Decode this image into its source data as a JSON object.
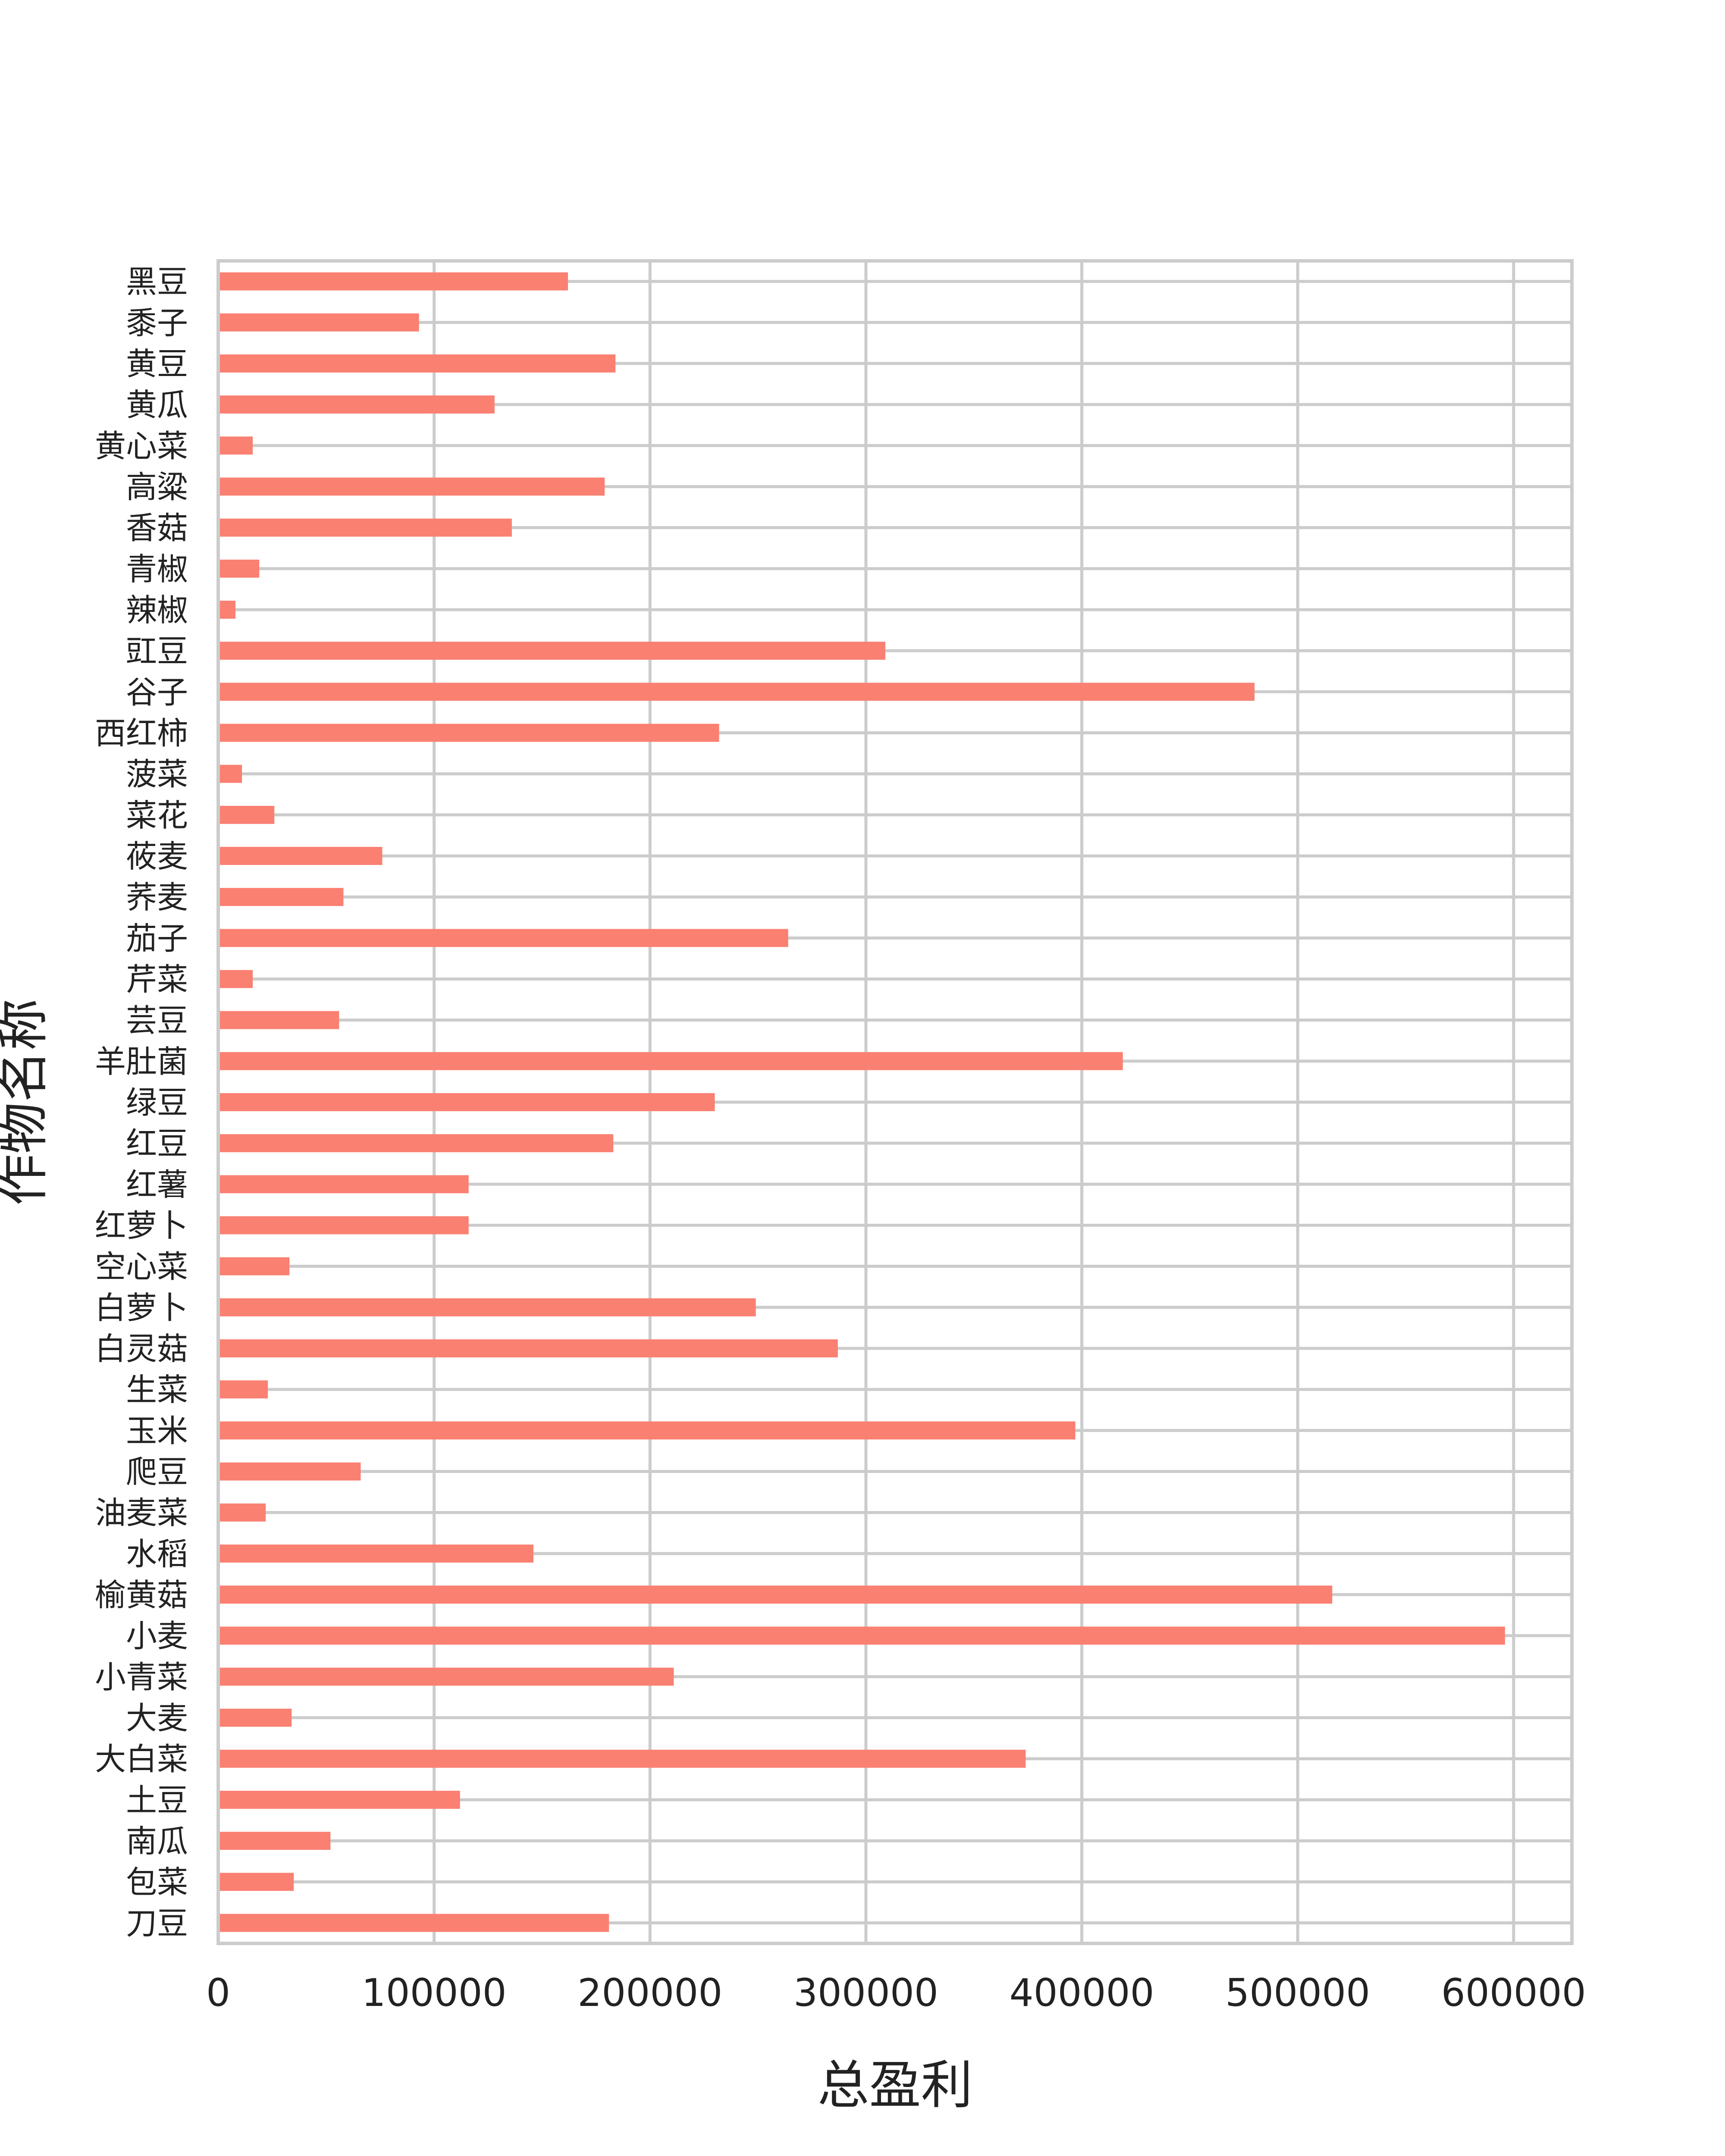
{
  "chart_data": {
    "type": "bar",
    "orientation": "horizontal",
    "xlabel": "总盈利",
    "ylabel": "作物名称",
    "xlim": [
      0,
      627000
    ],
    "xticks": [
      0,
      100000,
      200000,
      300000,
      400000,
      500000,
      600000
    ],
    "xtick_labels": [
      "0",
      "100000",
      "200000",
      "300000",
      "400000",
      "500000",
      "600000"
    ],
    "grid": true,
    "bar_color": "#fa8072",
    "grid_color": "#cccccc",
    "categories": [
      "黑豆",
      "黍子",
      "黄豆",
      "黄瓜",
      "黄心菜",
      "高粱",
      "香菇",
      "青椒",
      "辣椒",
      "豇豆",
      "谷子",
      "西红柿",
      "菠菜",
      "菜花",
      "莜麦",
      "荞麦",
      "茄子",
      "芹菜",
      "芸豆",
      "羊肚菌",
      "绿豆",
      "红豆",
      "红薯",
      "红萝卜",
      "空心菜",
      "白萝卜",
      "白灵菇",
      "生菜",
      "玉米",
      "爬豆",
      "油麦菜",
      "水稻",
      "榆黄菇",
      "小麦",
      "小青菜",
      "大麦",
      "大白菜",
      "土豆",
      "南瓜",
      "包菜",
      "刀豆"
    ],
    "values": [
      162000,
      93000,
      184000,
      128000,
      16000,
      179000,
      136000,
      19000,
      8000,
      309000,
      480000,
      232000,
      11000,
      26000,
      76000,
      58000,
      264000,
      16000,
      56000,
      419000,
      230000,
      183000,
      116000,
      116000,
      33000,
      249000,
      287000,
      23000,
      397000,
      66000,
      22000,
      146000,
      516000,
      596000,
      211000,
      34000,
      374000,
      112000,
      52000,
      35000,
      181000
    ]
  }
}
